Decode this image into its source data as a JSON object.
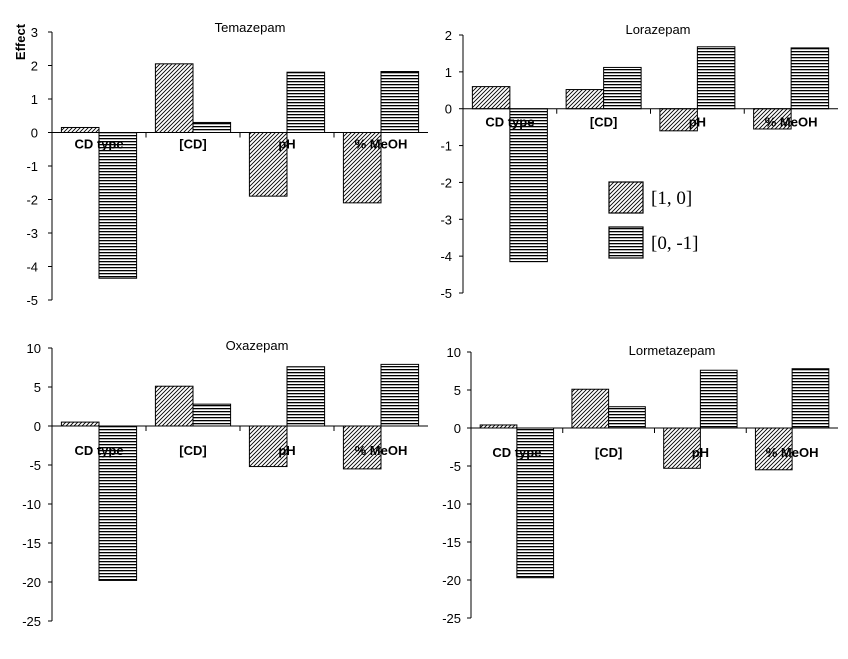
{
  "chart_data": [
    {
      "type": "bar",
      "title": "Temazepam",
      "ylabel": "Effect",
      "ylim": [
        -5,
        3
      ],
      "yticks": [
        3,
        2,
        1,
        0,
        -1,
        -2,
        -3,
        -4,
        -5
      ],
      "ytick_labels": [
        "3",
        "2",
        "1",
        "0",
        "-1",
        "-2",
        "-3",
        "-4",
        "-5"
      ],
      "categories": [
        "CD type",
        "[CD]",
        "pH",
        "% MeOH"
      ],
      "series": [
        {
          "name": "[1, 0]",
          "values": [
            0.15,
            2.05,
            -1.9,
            -2.1
          ]
        },
        {
          "name": "[0, -1]",
          "values": [
            -4.35,
            0.3,
            1.8,
            1.82
          ]
        }
      ]
    },
    {
      "type": "bar",
      "title": "Lorazepam",
      "ylabel": "",
      "ylim": [
        -5,
        2
      ],
      "yticks": [
        2,
        1,
        0,
        -1,
        -2,
        -3,
        -4,
        -5
      ],
      "ytick_labels": [
        "2",
        "1",
        "0",
        "-1",
        "-2",
        "-3",
        "-4",
        "-5"
      ],
      "categories": [
        "CD type",
        "[CD]",
        "pH",
        "% MeOH"
      ],
      "series": [
        {
          "name": "[1, 0]",
          "values": [
            0.6,
            0.52,
            -0.6,
            -0.55
          ]
        },
        {
          "name": "[0, -1]",
          "values": [
            -4.15,
            1.12,
            1.68,
            1.65
          ]
        }
      ]
    },
    {
      "type": "bar",
      "title": "Oxazepam",
      "ylabel": "",
      "ylim": [
        -25,
        10
      ],
      "yticks": [
        10,
        5,
        0,
        -5,
        -10,
        -15,
        -20,
        -25
      ],
      "ytick_labels": [
        "10",
        "5",
        "0",
        "-5",
        "-10",
        "-15",
        "-20",
        "-25"
      ],
      "categories": [
        "CD type",
        "[CD]",
        "pH",
        "% MeOH"
      ],
      "series": [
        {
          "name": "[1, 0]",
          "values": [
            0.5,
            5.1,
            -5.2,
            -5.5
          ]
        },
        {
          "name": "[0, -1]",
          "values": [
            -19.8,
            2.8,
            7.6,
            7.9
          ]
        }
      ]
    },
    {
      "type": "bar",
      "title": "Lormetazepam",
      "ylabel": "",
      "ylim": [
        -25,
        10
      ],
      "yticks": [
        10,
        5,
        0,
        -5,
        -10,
        -15,
        -20,
        -25
      ],
      "ytick_labels": [
        "10",
        "5",
        "0",
        "-5",
        "-10",
        "-15",
        "-20",
        "-25"
      ],
      "categories": [
        "CD type",
        "[CD]",
        "pH",
        "% MeOH"
      ],
      "series": [
        {
          "name": "[1, 0]",
          "values": [
            0.4,
            5.1,
            -5.3,
            -5.5
          ]
        },
        {
          "name": "[0, -1]",
          "values": [
            -19.7,
            2.8,
            7.6,
            7.8
          ]
        }
      ]
    }
  ],
  "legend": {
    "entries": [
      "[1, 0]",
      "[0, -1]"
    ],
    "placement": "inside Lorazepam panel, middle-right"
  }
}
